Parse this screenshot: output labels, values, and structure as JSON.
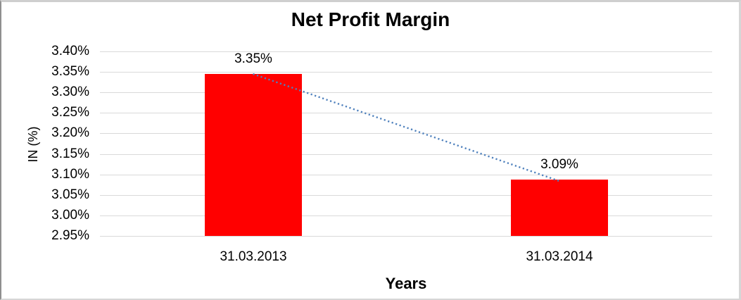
{
  "chart_data": {
    "type": "bar",
    "title": "Net Profit Margin",
    "xlabel": "Years",
    "ylabel": "IN (%)",
    "categories": [
      "31.03.2013",
      "31.03.2014"
    ],
    "values": [
      3.345,
      3.088
    ],
    "data_labels": [
      "3.35%",
      "3.09%"
    ],
    "y_tick_labels": [
      "3.40%",
      "3.35%",
      "3.30%",
      "3.25%",
      "3.20%",
      "3.15%",
      "3.10%",
      "3.05%",
      "3.00%",
      "2.95%"
    ],
    "ylim": [
      2.95,
      3.4
    ],
    "y_step": 0.05,
    "grid": true,
    "legend_position": "none",
    "bar_color": "#FF0000",
    "gridline_color": "#D9D9D9",
    "text_color": "#000000",
    "trendline": {
      "type": "linear",
      "style": "dotted",
      "color": "#4F81BD"
    },
    "frame_border_color": "#D3D3D3"
  }
}
